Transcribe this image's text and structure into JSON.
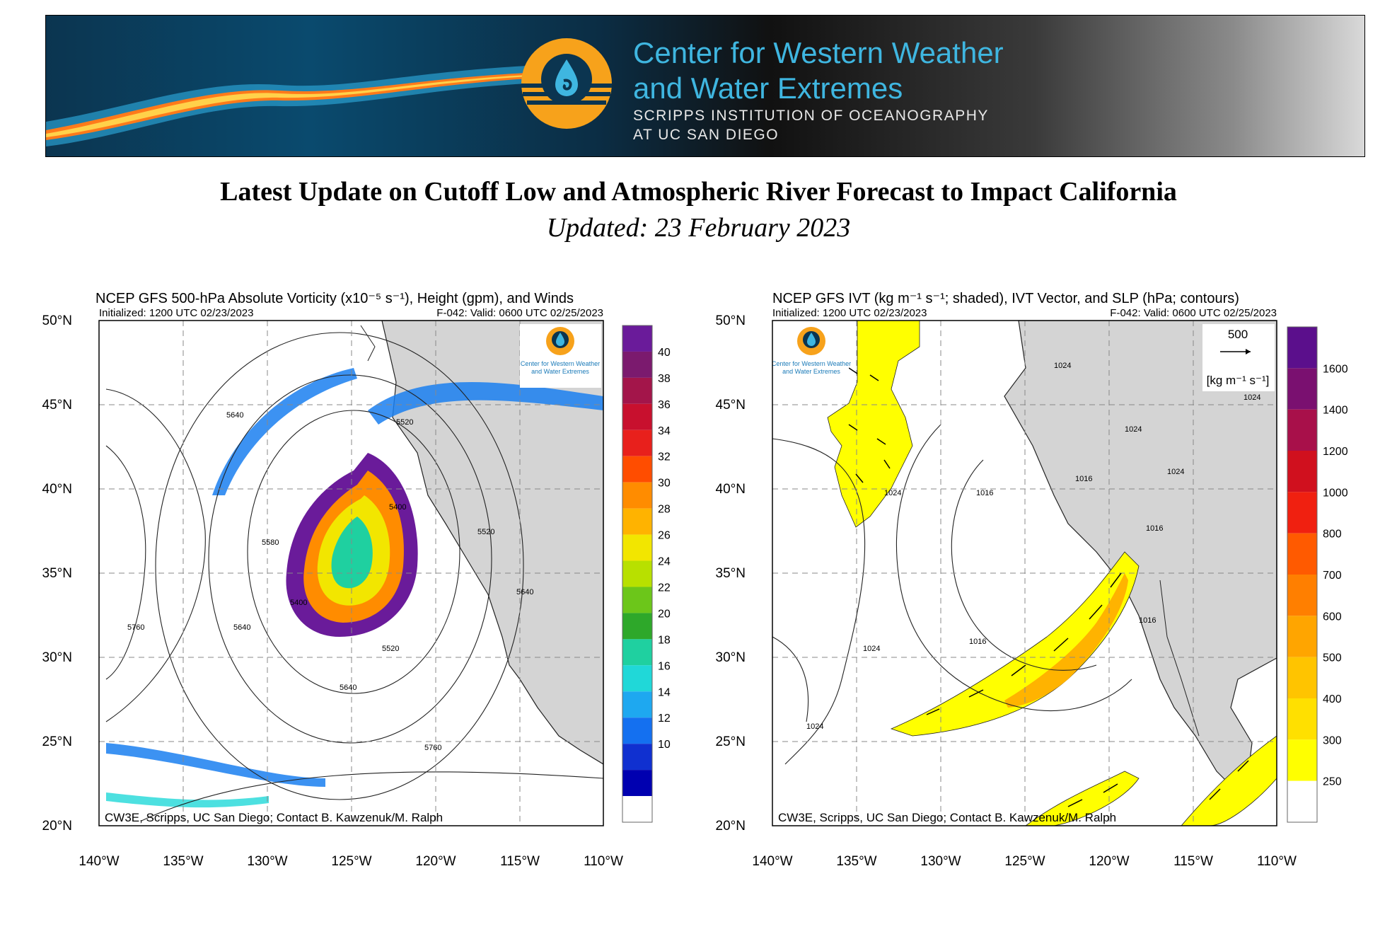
{
  "banner": {
    "org_line1": "Center for Western Weather",
    "org_line2": "and Water Extremes",
    "inst_line1": "SCRIPPS INSTITUTION  OF OCEANOGRAPHY",
    "inst_line2": "AT UC SAN DIEGO"
  },
  "page": {
    "title": "Latest Update on Cutoff Low and Atmospheric River Forecast to Impact California",
    "subtitle": "Updated: 23 February 2023"
  },
  "logo_text": {
    "line1": "Center for Western Weather",
    "line2": "and Water Extremes"
  },
  "axes": {
    "lat_labels": [
      "50°N",
      "45°N",
      "40°N",
      "35°N",
      "30°N",
      "25°N",
      "20°N"
    ],
    "lon_labels": [
      "140°W",
      "135°W",
      "130°W",
      "125°W",
      "120°W",
      "115°W",
      "110°W"
    ]
  },
  "left_map": {
    "title": "NCEP GFS 500-hPa Absolute Vorticity (x10⁻⁵ s⁻¹), Height (gpm), and Winds",
    "init": "Initialized: 1200 UTC 02/23/2023",
    "valid": "F-042: Valid: 0600 UTC 02/25/2023",
    "credit": "CW3E, Scripps, UC San Diego; Contact B. Kawzenuk/M. Ralph",
    "colorbar_labels": [
      "40",
      "38",
      "36",
      "34",
      "32",
      "30",
      "28",
      "26",
      "24",
      "22",
      "20",
      "18",
      "16",
      "14",
      "12",
      "10"
    ],
    "colorbar_colors": [
      "#6a1b9a",
      "#7b1a6e",
      "#a3154a",
      "#c8102e",
      "#e8201c",
      "#ff4d00",
      "#ff8c00",
      "#ffb300",
      "#f2e600",
      "#b8e000",
      "#6cc61a",
      "#2ea82a",
      "#1fd0a0",
      "#20d8d8",
      "#1ea8f0",
      "#1470f0",
      "#1030d0",
      "#0000b0",
      "#ffffff"
    ],
    "contour_labels": [
      "5640",
      "5520",
      "5400",
      "5580",
      "5760",
      "5640",
      "5520",
      "5400",
      "5520",
      "5760",
      "5640",
      "5640"
    ]
  },
  "right_map": {
    "title": "NCEP GFS IVT (kg m⁻¹ s⁻¹; shaded), IVT Vector, and SLP (hPa; contours)",
    "init": "Initialized: 1200 UTC 02/23/2023",
    "valid": "F-042: Valid: 0600 UTC 02/25/2023",
    "credit": "CW3E, Scripps, UC San Diego; Contact B. Kawzenuk/M. Ralph",
    "vector_ref": "500",
    "vector_unit": "[kg m⁻¹ s⁻¹]",
    "colorbar_labels": [
      "1600",
      "1400",
      "1200",
      "1000",
      "800",
      "700",
      "600",
      "500",
      "400",
      "300",
      "250"
    ],
    "colorbar_colors": [
      "#5b0f8c",
      "#7a1070",
      "#a8104a",
      "#d0101e",
      "#f02010",
      "#ff5a00",
      "#ff7f00",
      "#ffa500",
      "#ffc400",
      "#ffe000",
      "#ffff00",
      "#ffffff"
    ],
    "contour_labels": [
      "1024",
      "1024",
      "1016",
      "1016",
      "1024",
      "1024",
      "1016",
      "1024",
      "1024",
      "1016",
      "1016",
      "1024"
    ]
  }
}
